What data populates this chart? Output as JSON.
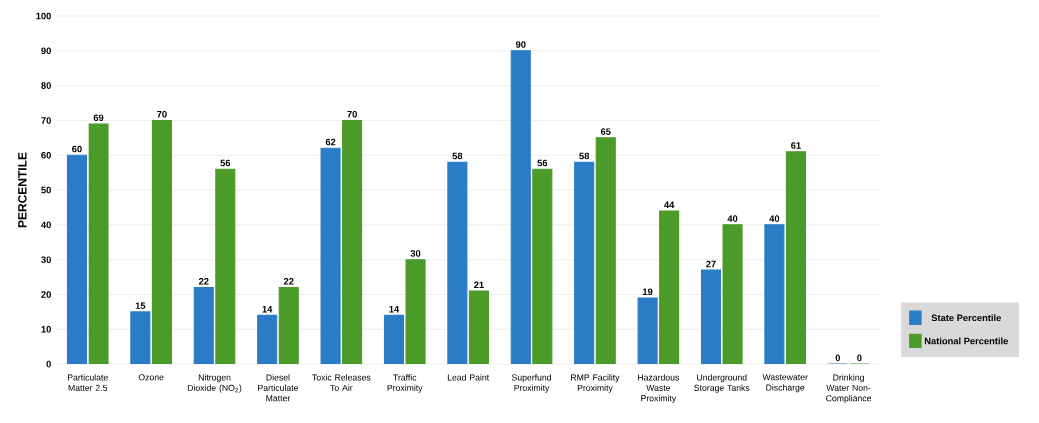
{
  "chart_data": {
    "type": "bar",
    "ylabel": "PERCENTILE",
    "categories": [
      "Particulate Matter 2.5",
      "Ozone",
      "Nitrogen Dioxide (NO$_{2}$)",
      "Diesel Particulate Matter",
      "Toxic Releases To Air",
      "Traffic Proximity",
      "Lead Paint",
      "Superfund Proximity",
      "RMP Facility Proximity",
      "Hazardous Waste Proximity",
      "Underground Storage Tanks",
      "Wastewater Discharge",
      "Drinking Water Non-Compliance"
    ],
    "series": [
      {
        "name": "State Percentile",
        "color": "#2b7cc6",
        "values": [
          60,
          15,
          22,
          14,
          62,
          14,
          58,
          90,
          58,
          19,
          27,
          40,
          0
        ]
      },
      {
        "name": "National Percentile",
        "color": "#4c9a2a",
        "values": [
          69,
          70,
          56,
          22,
          70,
          30,
          21,
          56,
          65,
          44,
          40,
          61,
          0
        ]
      }
    ],
    "ylim": [
      0,
      100
    ],
    "yticks": [
      0,
      10,
      20,
      30,
      40,
      50,
      60,
      70,
      80,
      90,
      100
    ],
    "grid": "y",
    "legend": "bottom right",
    "data_labels": true
  }
}
